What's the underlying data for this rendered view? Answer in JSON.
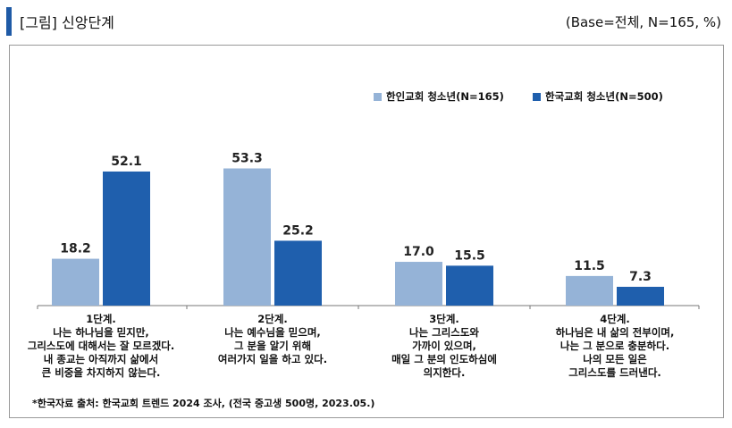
{
  "header": {
    "title": "[그림]  신앙단계",
    "base": "(Base=전체,  N=165,  %)"
  },
  "source": "*한국자료 출처: 한국교회 트렌드 2024 조사, (전국 중고생 500명, 2023.05.)",
  "colors": {
    "series1": "#95b3d7",
    "series2": "#1f5fad",
    "accent": "#1f5aa6"
  },
  "chart_data": {
    "type": "bar",
    "categories": [
      "1단계.",
      "2단계.",
      "3단계.",
      "4단계."
    ],
    "descriptions": [
      [
        "나는 하나님을 믿지만,",
        "그리스도에 대해서는 잘 모르겠다.",
        "내 종교는 아직까지 삶에서",
        "큰 비중을 차지하지 않는다."
      ],
      [
        "나는 예수님을 믿으며,",
        "그 분을 알기 위해",
        "여러가지  일을 하고 있다."
      ],
      [
        "나는 그리스도와",
        "가까이 있으며,",
        "매일 그 분의 인도하심에",
        "의지한다."
      ],
      [
        "하나님은 내 삶의 전부이며,",
        "나는 그 분으로 충분하다.",
        "나의 모든 일은",
        "그리스도를 드러낸다."
      ]
    ],
    "series": [
      {
        "name": "한인교회 청소년(N=165)",
        "values": [
          18.2,
          53.3,
          17.0,
          11.5
        ]
      },
      {
        "name": "한국교회 청소년(N=500)",
        "values": [
          52.1,
          25.2,
          15.5,
          7.3
        ]
      }
    ],
    "labels": [
      [
        "18.2",
        "53.3",
        "17.0",
        "11.5"
      ],
      [
        "52.1",
        "25.2",
        "15.5",
        "7.3"
      ]
    ],
    "legend_position": "top-right",
    "ylim": [
      0,
      60
    ],
    "grid": false
  }
}
